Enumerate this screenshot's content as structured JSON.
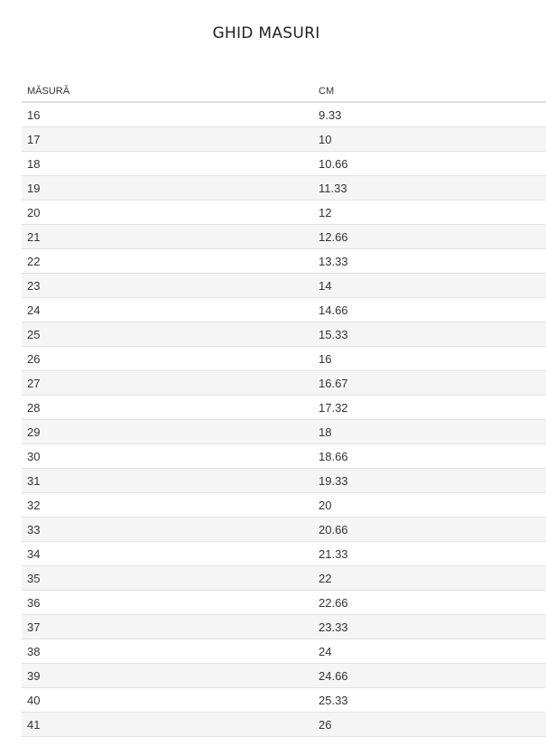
{
  "title": "GHID MASURI",
  "table": {
    "headers": [
      "MĂSURĂ",
      "CM"
    ],
    "rows": [
      [
        "16",
        "9.33"
      ],
      [
        "17",
        "10"
      ],
      [
        "18",
        "10.66"
      ],
      [
        "19",
        "11.33"
      ],
      [
        "20",
        "12"
      ],
      [
        "21",
        "12.66"
      ],
      [
        "22",
        "13.33"
      ],
      [
        "23",
        "14"
      ],
      [
        "24",
        "14.66"
      ],
      [
        "25",
        "15.33"
      ],
      [
        "26",
        "16"
      ],
      [
        "27",
        "16.67"
      ],
      [
        "28",
        "17.32"
      ],
      [
        "29",
        "18"
      ],
      [
        "30",
        "18.66"
      ],
      [
        "31",
        "19.33"
      ],
      [
        "32",
        "20"
      ],
      [
        "33",
        "20.66"
      ],
      [
        "34",
        "21.33"
      ],
      [
        "35",
        "22"
      ],
      [
        "36",
        "22.66"
      ],
      [
        "37",
        "23.33"
      ],
      [
        "38",
        "24"
      ],
      [
        "39",
        "24.66"
      ],
      [
        "40",
        "25.33"
      ],
      [
        "41",
        "26"
      ]
    ]
  }
}
